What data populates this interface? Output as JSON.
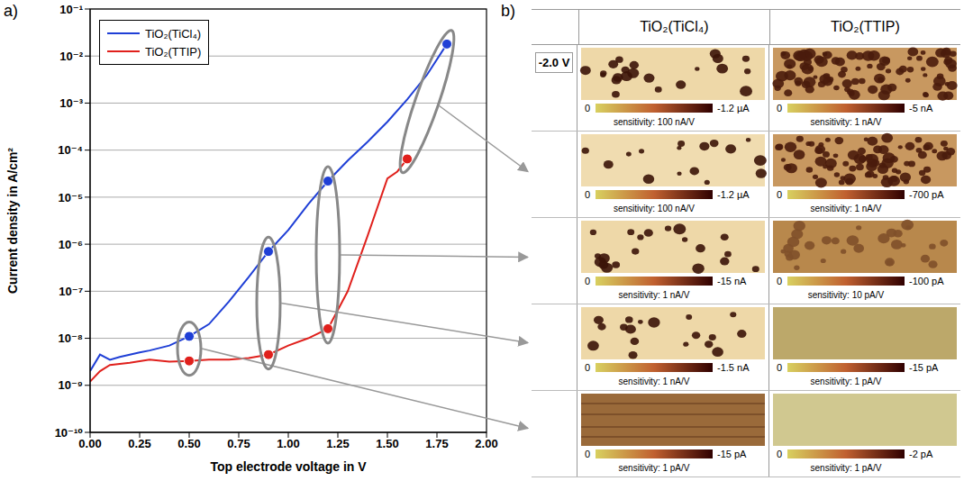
{
  "chart_data": {
    "type": "line",
    "annotations": [
      "a)"
    ],
    "x_label": "Top electrode voltage in V",
    "y_label": "Current density in A/cm²",
    "log": "y",
    "grid": true,
    "legend": "upper left",
    "xlim": [
      0,
      2
    ],
    "xticks": [
      {
        "value": 0,
        "label": "0.00"
      },
      {
        "value": 0.25,
        "label": "0.25"
      },
      {
        "value": 0.5,
        "label": "0.50"
      },
      {
        "value": 0.75,
        "label": "0.75"
      },
      {
        "value": 1,
        "label": "1.00"
      },
      {
        "value": 1.25,
        "label": "1.25"
      },
      {
        "value": 1.5,
        "label": "1.50"
      },
      {
        "value": 1.75,
        "label": "1.75"
      },
      {
        "value": 2,
        "label": "2.00"
      }
    ],
    "ylim": [
      1e-10,
      0.1
    ],
    "yticks": [
      {
        "value": 1e-10,
        "label": "10⁻¹⁰"
      },
      {
        "value": 1e-09,
        "label": "10⁻⁹"
      },
      {
        "value": 1e-08,
        "label": "10⁻⁸"
      },
      {
        "value": 1e-07,
        "label": "10⁻⁷"
      },
      {
        "value": 1e-06,
        "label": "10⁻⁶"
      },
      {
        "value": 1e-05,
        "label": "10⁻⁵"
      },
      {
        "value": 0.0001,
        "label": "10⁻⁴"
      },
      {
        "value": 0.001,
        "label": "10⁻³"
      },
      {
        "value": 0.01,
        "label": "10⁻²"
      },
      {
        "value": 0.1,
        "label": "10⁻¹"
      }
    ],
    "series": [
      {
        "name": "TiO₂(TiCl₄)",
        "color": "#1f3fd6",
        "marker": "circle",
        "x": [
          0,
          0.05,
          0.1,
          0.15,
          0.25,
          0.3,
          0.4,
          0.5,
          0.6,
          0.7,
          0.8,
          0.9,
          1.0,
          1.1,
          1.2,
          1.3,
          1.4,
          1.5,
          1.6,
          1.7,
          1.8
        ],
        "values": [
          2e-09,
          4.5e-09,
          3.5e-09,
          4e-09,
          5e-09,
          5.5e-09,
          7e-09,
          1.1e-08,
          2e-08,
          6e-08,
          2e-07,
          7e-07,
          2e-06,
          7e-06,
          2.2e-05,
          6e-05,
          0.00015,
          0.0004,
          0.0012,
          0.004,
          0.018
        ],
        "highlighted_x": [
          0.5,
          0.9,
          1.2,
          1.8
        ]
      },
      {
        "name": "TiO₂(TTIP)",
        "color": "#e0201c",
        "marker": "circle",
        "x": [
          0,
          0.05,
          0.1,
          0.2,
          0.3,
          0.4,
          0.5,
          0.6,
          0.7,
          0.8,
          0.9,
          1.0,
          1.1,
          1.2,
          1.3,
          1.4,
          1.5,
          1.55,
          1.6
        ],
        "values": [
          1.2e-09,
          2e-09,
          2.7e-09,
          3e-09,
          3.5e-09,
          3.2e-09,
          3.3e-09,
          3.5e-09,
          3.5e-09,
          3.8e-09,
          4.5e-09,
          7e-09,
          1e-08,
          1.6e-08,
          1e-07,
          1.5e-06,
          2.5e-05,
          3.5e-05,
          6.5e-05
        ],
        "highlighted_x": [
          0.5,
          0.9,
          1.2,
          1.6
        ]
      }
    ]
  },
  "table": {
    "label": "b)",
    "row_label": "-2.0 V",
    "columns": [
      "TiO₂(TiCl₄)",
      "TiO₂(TTIP)"
    ],
    "rows": [
      [
        {
          "scale_min": "0",
          "scale_max": "-1.2 µA",
          "sensitivity": "sensitivity: 100 nA/V"
        },
        {
          "scale_min": "0",
          "scale_max": "-5 nA",
          "sensitivity": "sensitivity: 1 nA/V"
        }
      ],
      [
        {
          "scale_min": "0",
          "scale_max": "-1.2 µA",
          "sensitivity": "sensitivity: 100 nA/V"
        },
        {
          "scale_min": "0",
          "scale_max": "-700 pA",
          "sensitivity": "sensitivity: 1 nA/V"
        }
      ],
      [
        {
          "scale_min": "0",
          "scale_max": "-15 nA",
          "sensitivity": "sensitivity: 1 nA/V"
        },
        {
          "scale_min": "0",
          "scale_max": "-100 pA",
          "sensitivity": "sensitivity: 10 pA/V"
        }
      ],
      [
        {
          "scale_min": "0",
          "scale_max": "-1.5 nA",
          "sensitivity": "sensitivity: 1 nA/V"
        },
        {
          "scale_min": "0",
          "scale_max": "-15 pA",
          "sensitivity": "sensitivity: 1 pA/V"
        }
      ],
      [
        {
          "scale_min": "0",
          "scale_max": "-15 pA",
          "sensitivity": "sensitivity: 1 pA/V"
        },
        {
          "scale_min": "0",
          "scale_max": "-2 pA",
          "sensitivity": "sensitivity: 1 pA/V"
        }
      ]
    ]
  }
}
